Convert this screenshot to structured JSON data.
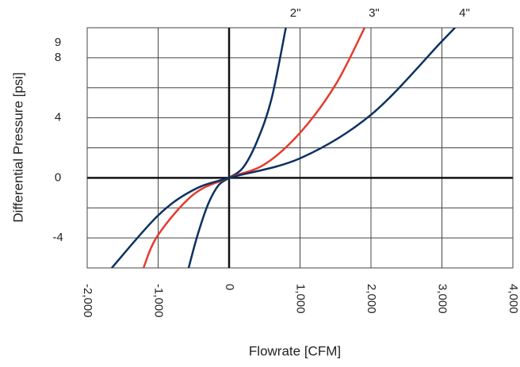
{
  "chart_data": {
    "type": "line",
    "x_label": "Flowrate [CFM]",
    "y_label": "Differential Pressure [psi]",
    "xlim": [
      -2000,
      4000
    ],
    "xticks": [
      {
        "value": -2000,
        "label": "-2,000"
      },
      {
        "value": -1000,
        "label": "-1,000"
      },
      0,
      {
        "value": 1000,
        "label": "1,000"
      },
      {
        "value": 2000,
        "label": "2,000"
      },
      {
        "value": 3000,
        "label": "3,000"
      },
      {
        "value": 4000,
        "label": "4,000"
      }
    ],
    "ylim": [
      -6,
      10
    ],
    "yticks": [
      -4,
      0,
      4,
      8,
      9
    ],
    "ygrid": [
      -6,
      -4,
      -2,
      0,
      2,
      4,
      6,
      8,
      10
    ],
    "grid": true,
    "series": [
      {
        "name": "2\"",
        "color": "#0b3160",
        "x": [
          -570,
          -450,
          -300,
          -150,
          0,
          200,
          400,
          600,
          800
        ],
        "values": [
          -6,
          -3.9,
          -1.8,
          -0.5,
          0,
          0.7,
          2.5,
          5.3,
          10
        ]
      },
      {
        "name": "3\"",
        "color": "#e63a2e",
        "x": [
          -1207,
          -1000,
          -500,
          0,
          500,
          1000,
          1500,
          1910
        ],
        "values": [
          -6,
          -3.8,
          -1.1,
          0,
          0.9,
          3.0,
          6.2,
          10
        ]
      },
      {
        "name": "4\"",
        "color": "#0b3160",
        "x": [
          -1654,
          -1000,
          -500,
          0,
          1000,
          2000,
          3000,
          3184
        ],
        "values": [
          -6,
          -2.5,
          -0.8,
          0,
          1.3,
          4.2,
          9.1,
          10
        ]
      }
    ]
  }
}
